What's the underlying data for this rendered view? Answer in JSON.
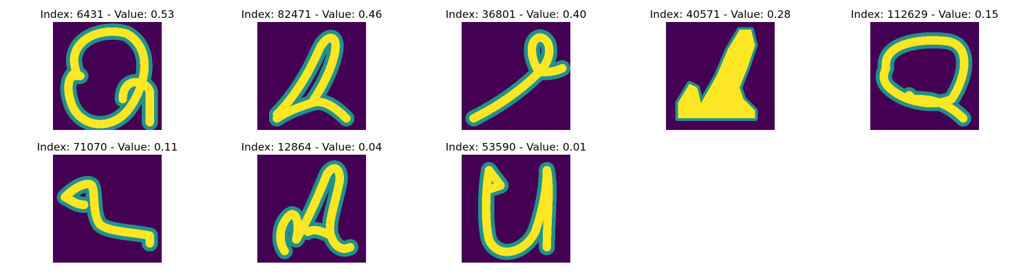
{
  "panels": [
    {
      "title": "Index: 6431 - Value: 0.53",
      "index": 6431,
      "value": 0.53
    },
    {
      "title": "Index: 82471 - Value: 0.46",
      "index": 82471,
      "value": 0.46
    },
    {
      "title": "Index: 36801 - Value: 0.40",
      "index": 36801,
      "value": 0.4
    },
    {
      "title": "Index: 40571 - Value: 0.28",
      "index": 40571,
      "value": 0.28
    },
    {
      "title": "Index: 112629 - Value: 0.15",
      "index": 112629,
      "value": 0.15
    },
    {
      "title": "Index: 71070 - Value: 0.11",
      "index": 71070,
      "value": 0.11
    },
    {
      "title": "Index: 12864 - Value: 0.04",
      "index": 12864,
      "value": 0.04
    },
    {
      "title": "Index: 53590 - Value: 0.01",
      "index": 53590,
      "value": 0.01
    }
  ],
  "colors": {
    "background": "#440154",
    "edge": "#21918c",
    "stroke": "#fde725"
  }
}
